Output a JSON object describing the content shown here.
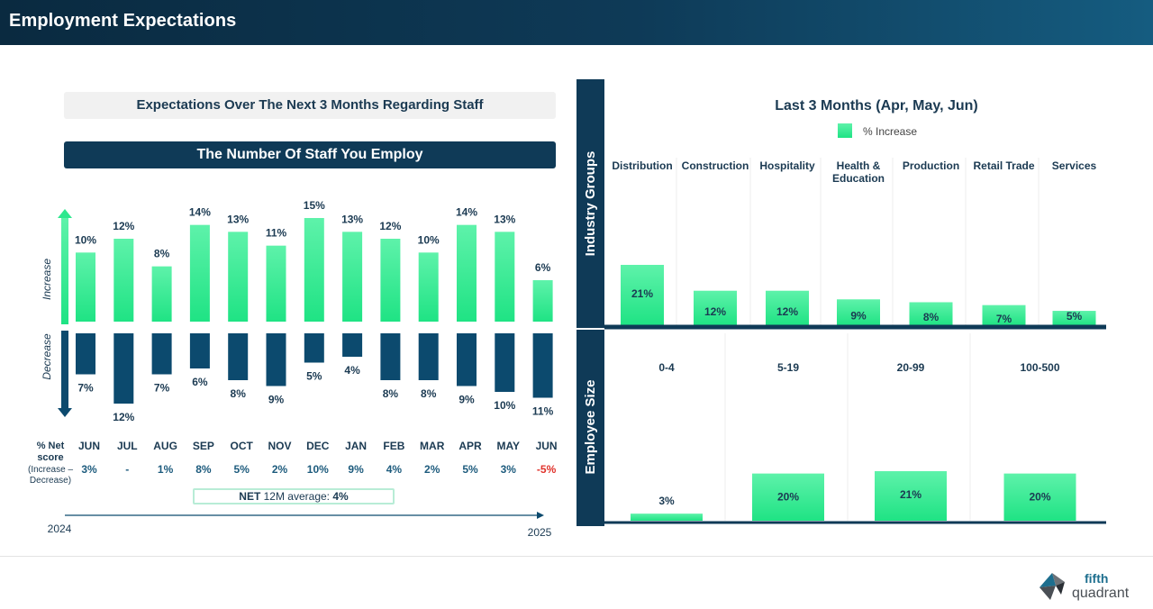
{
  "header": {
    "title": "Employment Expectations"
  },
  "left": {
    "subtitle": "Expectations Over The Next 3 Months Regarding Staff",
    "section_title": "The Number Of Staff You Employ",
    "increase_label": "Increase",
    "decrease_label": "Decrease",
    "net_label_line1": "% Net",
    "net_label_line2": "score",
    "net_label_line3": "(Increase –",
    "net_label_line4": "Decrease)",
    "year_start": "2024",
    "year_end": "2025",
    "avg_prefix": "NET",
    "avg_middle": " 12M average: ",
    "avg_value": "4%"
  },
  "colors": {
    "increase": "#2ee88e",
    "increase_light": "#5ef2aa",
    "decrease": "#0c4a6e",
    "navy": "#0f3a57",
    "negative": "#e0322b",
    "net": "#1d5b7d"
  },
  "chart_data": [
    {
      "type": "bar",
      "title": "The Number Of Staff You Employ",
      "categories": [
        "JUN",
        "JUL",
        "AUG",
        "SEP",
        "OCT",
        "NOV",
        "DEC",
        "JAN",
        "FEB",
        "MAR",
        "APR",
        "MAY",
        "JUN"
      ],
      "series": [
        {
          "name": "Increase",
          "values": [
            10,
            12,
            8,
            14,
            13,
            11,
            15,
            13,
            12,
            10,
            14,
            13,
            6
          ],
          "labels": [
            "10%",
            "12%",
            "8%",
            "14%",
            "13%",
            "11%",
            "15%",
            "13%",
            "12%",
            "10%",
            "14%",
            "13%",
            "6%"
          ]
        },
        {
          "name": "Decrease",
          "values": [
            7,
            12,
            7,
            6,
            8,
            9,
            5,
            4,
            8,
            8,
            9,
            10,
            11
          ],
          "labels": [
            "7%",
            "12%",
            "7%",
            "6%",
            "8%",
            "9%",
            "5%",
            "4%",
            "8%",
            "8%",
            "9%",
            "10%",
            "11%"
          ]
        }
      ],
      "net_score": [
        "3%",
        "-",
        "1%",
        "8%",
        "5%",
        "2%",
        "10%",
        "9%",
        "4%",
        "2%",
        "5%",
        "3%",
        "-5%"
      ],
      "net_negative": [
        false,
        false,
        false,
        false,
        false,
        false,
        false,
        false,
        false,
        false,
        false,
        false,
        true
      ],
      "xlabel": "",
      "ylabel": "",
      "ylim": [
        0,
        15
      ]
    },
    {
      "type": "bar",
      "title": "Last 3 Months (Apr, May, Jun)",
      "legend": "% Increase",
      "group_label": "Industry Groups",
      "categories": [
        "Distribution",
        "Construction",
        "Hospitality",
        "Health & Education",
        "Production",
        "Retail Trade",
        "Services"
      ],
      "category_lines": [
        [
          "Distribution"
        ],
        [
          "Construction"
        ],
        [
          "Hospitality"
        ],
        [
          "Health &",
          "Education"
        ],
        [
          "Production"
        ],
        [
          "Retail Trade"
        ],
        [
          "Services"
        ]
      ],
      "values": [
        21,
        12,
        12,
        9,
        8,
        7,
        5
      ],
      "labels": [
        "21%",
        "12%",
        "12%",
        "9%",
        "8%",
        "7%",
        "5%"
      ],
      "ylim": [
        0,
        21
      ]
    },
    {
      "type": "bar",
      "group_label": "Employee Size",
      "categories": [
        "0-4",
        "5-19",
        "20-99",
        "100-500"
      ],
      "values": [
        3,
        20,
        21,
        20
      ],
      "labels": [
        "3%",
        "20%",
        "21%",
        "20%"
      ],
      "ylim": [
        0,
        21
      ]
    }
  ]
}
